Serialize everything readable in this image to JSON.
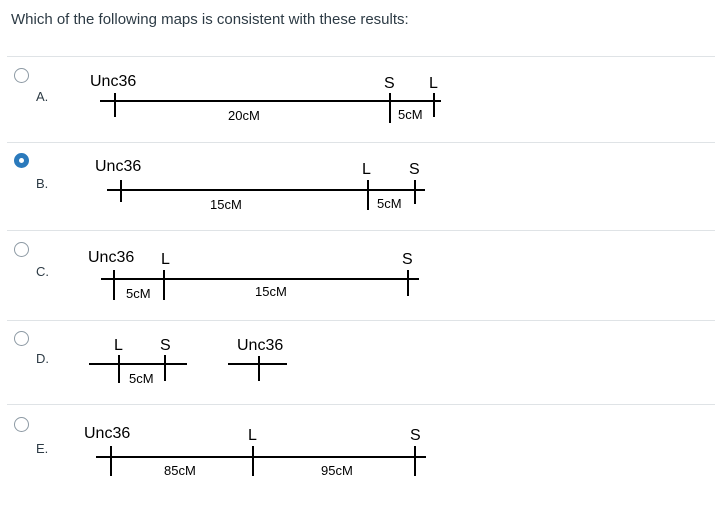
{
  "question": "Which of the following maps is consistent with these results:",
  "options": [
    {
      "letter": "A.",
      "selected": false,
      "labels": [
        "Unc36",
        "S",
        "L"
      ],
      "distances": [
        "20cM",
        "5cM"
      ]
    },
    {
      "letter": "B.",
      "selected": true,
      "labels": [
        "Unc36",
        "L",
        "S"
      ],
      "distances": [
        "15cM",
        "5cM"
      ]
    },
    {
      "letter": "C.",
      "selected": false,
      "labels": [
        "Unc36",
        "L",
        "S"
      ],
      "distances": [
        "5cM",
        "15cM"
      ]
    },
    {
      "letter": "D.",
      "selected": false,
      "labels": [
        "L",
        "S",
        "Unc36"
      ],
      "distances": [
        "5cM"
      ]
    },
    {
      "letter": "E.",
      "selected": false,
      "labels": [
        "Unc36",
        "L",
        "S"
      ],
      "distances": [
        "85cM",
        "95cM"
      ]
    }
  ],
  "colors": {
    "selected": "#2b7abc",
    "text": "#2d3b45",
    "divider": "#dfe3e6"
  }
}
